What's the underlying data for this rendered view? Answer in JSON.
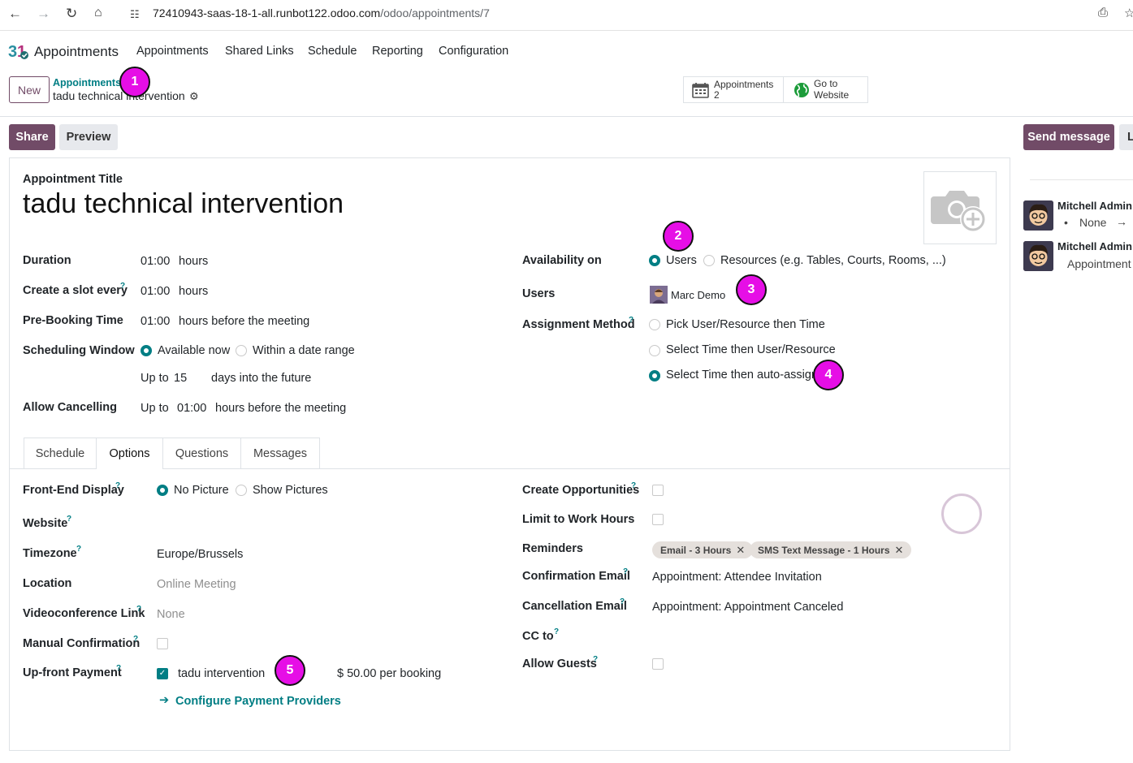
{
  "browser": {
    "url_host": "72410943-saas-18-1-all.runbot122.odoo.com",
    "url_path": "/odoo/appointments/7"
  },
  "app": {
    "title": "Appointments",
    "menu": [
      "Appointments",
      "Shared Links",
      "Schedule",
      "Reporting",
      "Configuration"
    ]
  },
  "control_panel": {
    "new_label": "New",
    "breadcrumb_parent": "Appointments",
    "breadcrumb_current": "tadu technical intervention",
    "smart_buttons": [
      {
        "line1": "Appointments",
        "line2": "2",
        "icon": "calendar-icon"
      },
      {
        "line1": "Go to",
        "line2": "Website",
        "icon": "globe-icon"
      }
    ]
  },
  "actions": {
    "share": "Share",
    "preview": "Preview",
    "send_message": "Send message",
    "log_note": "L"
  },
  "form": {
    "title_label": "Appointment Title",
    "title": "tadu technical intervention",
    "duration": {
      "label": "Duration",
      "value": "01:00",
      "unit": "hours"
    },
    "slot": {
      "label": "Create a slot every",
      "value": "01:00",
      "unit": "hours"
    },
    "prebooking": {
      "label": "Pre-Booking Time",
      "value": "01:00",
      "unit": "hours before the meeting"
    },
    "window": {
      "label": "Scheduling Window",
      "opt1": "Available now",
      "opt2": "Within a date range",
      "upto": "Up to",
      "days": "15",
      "days_suffix": "days into the future"
    },
    "cancelling": {
      "label": "Allow Cancelling",
      "upto": "Up to",
      "value": "01:00",
      "suffix": "hours before the meeting"
    },
    "availability": {
      "label": "Availability on",
      "opt1": "Users",
      "opt2": "Resources (e.g. Tables, Courts, Rooms, ...)"
    },
    "users": {
      "label": "Users",
      "value": "Marc Demo"
    },
    "assignment": {
      "label": "Assignment Method",
      "opt1": "Pick User/Resource then Time",
      "opt2": "Select Time then User/Resource",
      "opt3": "Select Time then auto-assign"
    }
  },
  "tabs": [
    "Schedule",
    "Options",
    "Questions",
    "Messages"
  ],
  "options": {
    "frontend": {
      "label": "Front-End Display",
      "opt1": "No Picture",
      "opt2": "Show Pictures"
    },
    "website": {
      "label": "Website"
    },
    "timezone": {
      "label": "Timezone",
      "value": "Europe/Brussels"
    },
    "location": {
      "label": "Location",
      "placeholder": "Online Meeting"
    },
    "videoconf": {
      "label": "Videoconference Link",
      "placeholder": "None"
    },
    "manual": {
      "label": "Manual Confirmation"
    },
    "payment": {
      "label": "Up-front Payment",
      "product": "tadu intervention",
      "price": "$ 50.00 per booking",
      "configure": "Configure Payment Providers"
    },
    "opportunities": {
      "label": "Create Opportunities"
    },
    "work_hours": {
      "label": "Limit to Work Hours"
    },
    "reminders": {
      "label": "Reminders",
      "tags": [
        "Email - 3 Hours",
        "SMS Text Message - 1 Hours"
      ]
    },
    "confirmation_email": {
      "label": "Confirmation Email",
      "value": "Appointment: Attendee Invitation"
    },
    "cancellation_email": {
      "label": "Cancellation Email",
      "value": "Appointment: Appointment Canceled"
    },
    "cc": {
      "label": "CC to"
    },
    "guests": {
      "label": "Allow Guests"
    }
  },
  "help_mark": "?",
  "badges": [
    "1",
    "2",
    "3",
    "4",
    "5"
  ],
  "chatter": [
    {
      "author": "Mitchell Admin",
      "bullet": "•",
      "text": "None",
      "arrow": "→"
    },
    {
      "author": "Mitchell Admin",
      "text": "Appointment"
    }
  ],
  "colors": {
    "primary": "#714b67",
    "accent": "#017e84",
    "badge": "#e60ee6"
  }
}
